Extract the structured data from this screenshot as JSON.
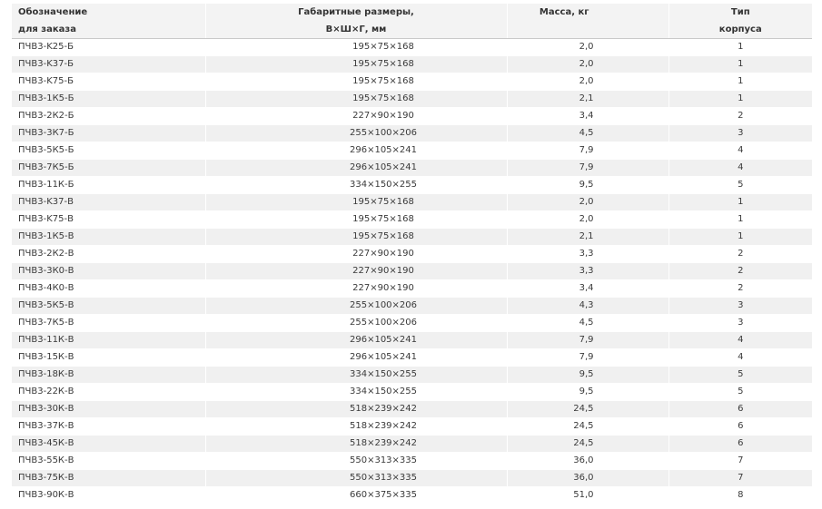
{
  "headers": {
    "col1_line1": "Обозначение",
    "col1_line2": "для заказа",
    "col2_line1": "Габаритные размеры,",
    "col2_line2": "В×Ш×Г, мм",
    "col3_line1": "Масса, кг",
    "col4_line1": "Тип",
    "col4_line2": "корпуса"
  },
  "rows": [
    {
      "name": "ПЧВ3-K25-Б",
      "dims": "195×75×168",
      "mass": "2,0",
      "type": "1"
    },
    {
      "name": "ПЧВ3-K37-Б",
      "dims": "195×75×168",
      "mass": "2,0",
      "type": "1"
    },
    {
      "name": "ПЧВ3-K75-Б",
      "dims": "195×75×168",
      "mass": "2,0",
      "type": "1"
    },
    {
      "name": "ПЧВ3-1К5-Б",
      "dims": "195×75×168",
      "mass": "2,1",
      "type": "1"
    },
    {
      "name": "ПЧВ3-2К2-Б",
      "dims": "227×90×190",
      "mass": "3,4",
      "type": "2"
    },
    {
      "name": "ПЧВ3-3К7-Б",
      "dims": "255×100×206",
      "mass": "4,5",
      "type": "3"
    },
    {
      "name": "ПЧВ3-5К5-Б",
      "dims": "296×105×241",
      "mass": "7,9",
      "type": "4"
    },
    {
      "name": "ПЧВ3-7К5-Б",
      "dims": "296×105×241",
      "mass": "7,9",
      "type": "4"
    },
    {
      "name": "ПЧВ3-11К-Б",
      "dims": "334×150×255",
      "mass": "9,5",
      "type": "5"
    },
    {
      "name": "ПЧВ3-K37-В",
      "dims": "195×75×168",
      "mass": "2,0",
      "type": "1"
    },
    {
      "name": "ПЧВ3-K75-В",
      "dims": "195×75×168",
      "mass": "2,0",
      "type": "1"
    },
    {
      "name": "ПЧВ3-1К5-В",
      "dims": "195×75×168",
      "mass": "2,1",
      "type": "1"
    },
    {
      "name": "ПЧВ3-2К2-В",
      "dims": "227×90×190",
      "mass": "3,3",
      "type": "2"
    },
    {
      "name": "ПЧВ3-3К0-В",
      "dims": "227×90×190",
      "mass": "3,3",
      "type": "2"
    },
    {
      "name": "ПЧВ3-4К0-В",
      "dims": "227×90×190",
      "mass": "3,4",
      "type": "2"
    },
    {
      "name": "ПЧВ3-5К5-В",
      "dims": "255×100×206",
      "mass": "4,3",
      "type": "3"
    },
    {
      "name": "ПЧВ3-7К5-В",
      "dims": "255×100×206",
      "mass": "4,5",
      "type": "3"
    },
    {
      "name": "ПЧВ3-11К-В",
      "dims": "296×105×241",
      "mass": "7,9",
      "type": "4"
    },
    {
      "name": "ПЧВ3-15К-В",
      "dims": "296×105×241",
      "mass": "7,9",
      "type": "4"
    },
    {
      "name": "ПЧВ3-18К-В",
      "dims": "334×150×255",
      "mass": "9,5",
      "type": "5"
    },
    {
      "name": "ПЧВ3-22К-В",
      "dims": "334×150×255",
      "mass": "9,5",
      "type": "5"
    },
    {
      "name": "ПЧВ3-30К-В",
      "dims": "518×239×242",
      "mass": "24,5",
      "type": "6"
    },
    {
      "name": "ПЧВ3-37К-В",
      "dims": "518×239×242",
      "mass": "24,5",
      "type": "6"
    },
    {
      "name": "ПЧВ3-45К-В",
      "dims": "518×239×242",
      "mass": "24,5",
      "type": "6"
    },
    {
      "name": "ПЧВ3-55К-В",
      "dims": "550×313×335",
      "mass": "36,0",
      "type": "7"
    },
    {
      "name": "ПЧВ3-75К-В",
      "dims": "550×313×335",
      "mass": "36,0",
      "type": "7"
    },
    {
      "name": "ПЧВ3-90К-В",
      "dims": "660×375×335",
      "mass": "51,0",
      "type": "8"
    }
  ]
}
